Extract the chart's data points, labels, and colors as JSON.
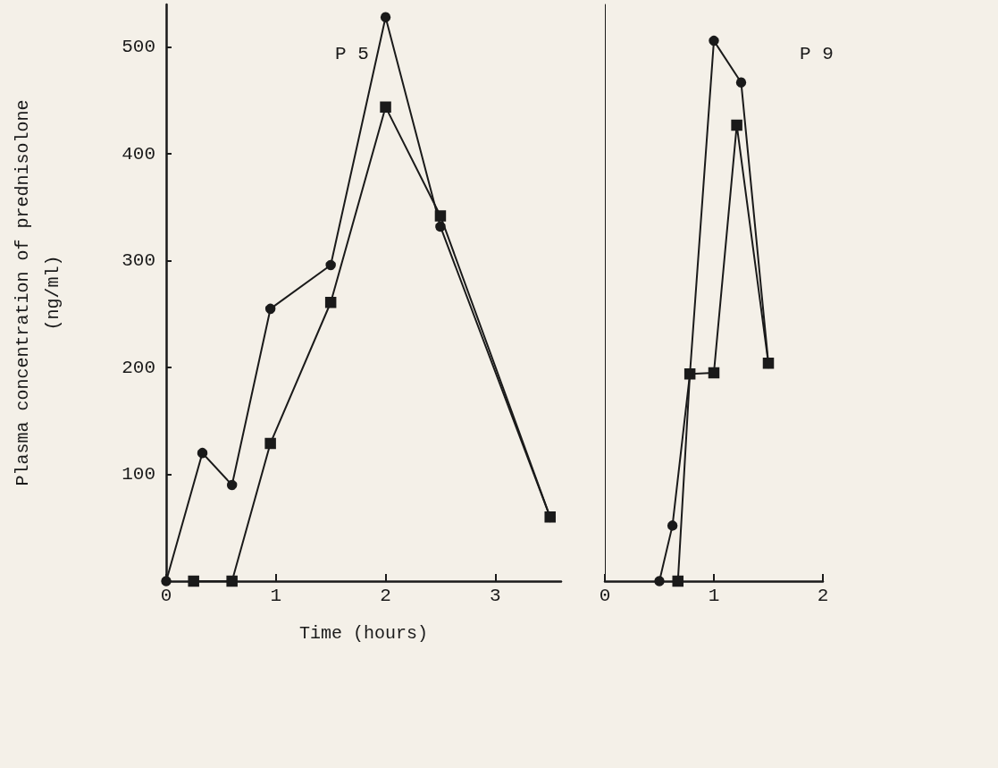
{
  "chart_data": [
    {
      "type": "line",
      "title": "P 5",
      "xlabel": "Time (hours)",
      "ylabel": "Plasma concentration of prednisolone\n(ng/ml)",
      "xlim": [
        0,
        3.6
      ],
      "xticks": [
        0,
        1,
        2,
        3
      ],
      "ylim": [
        0,
        540
      ],
      "yticks": [
        {
          "value": 0,
          "label": null
        },
        100,
        200,
        300,
        400,
        500
      ],
      "series": [
        {
          "color": "#1a1a1a",
          "marker": "circle",
          "x": [
            0,
            0.33,
            0.6,
            0.95,
            1.5,
            2.0,
            2.5,
            3.5
          ],
          "values": [
            0,
            120,
            90,
            255,
            296,
            528,
            332,
            60
          ]
        },
        {
          "color": "#1a1a1a",
          "marker": "square",
          "x": [
            0.25,
            0.6,
            0.95,
            1.5,
            2.0,
            2.5,
            3.5
          ],
          "values": [
            0,
            0,
            129,
            261,
            444,
            342,
            60
          ]
        }
      ]
    },
    {
      "type": "line",
      "title": "P 9",
      "xlim": [
        0,
        2
      ],
      "xticks": [
        0,
        1,
        2
      ],
      "ylim": [
        0,
        540
      ],
      "yticks": [
        {
          "value": 0,
          "label": null
        },
        100,
        200,
        300,
        400,
        500
      ],
      "tick_labels": "x",
      "series": [
        {
          "color": "#1a1a1a",
          "marker": "circle",
          "x": [
            0.5,
            0.62,
            0.78,
            1.0,
            1.25,
            1.5
          ],
          "values": [
            0,
            52,
            194,
            506,
            467,
            204
          ]
        },
        {
          "color": "#1a1a1a",
          "marker": "square",
          "x": [
            0.67,
            0.78,
            1.0,
            1.21,
            1.5
          ],
          "values": [
            0,
            194,
            195,
            427,
            204
          ]
        }
      ]
    }
  ]
}
